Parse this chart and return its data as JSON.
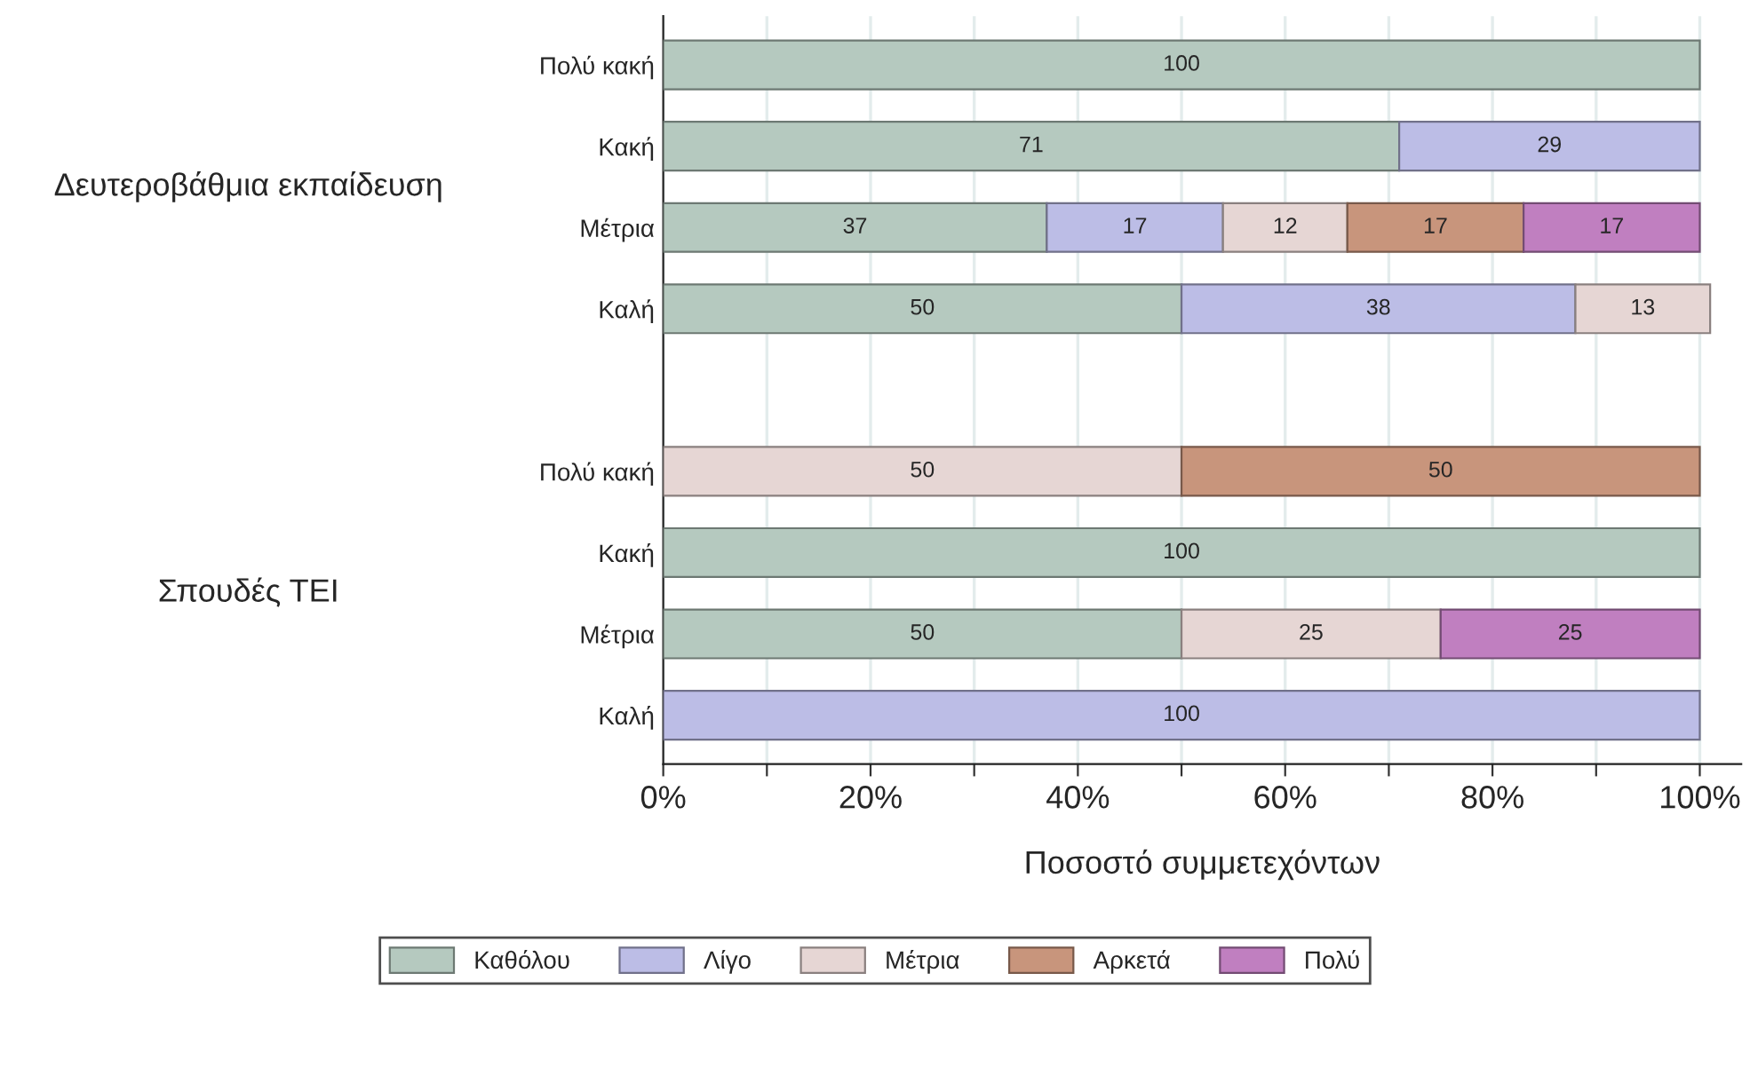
{
  "chart_data": {
    "type": "bar",
    "orientation": "horizontal",
    "stacked": true,
    "categories": [
      "Πολύ κακή",
      "Κακή",
      "Μέτρια",
      "Καλή",
      null,
      "Πολύ κακή",
      "Κακή",
      "Μέτρια",
      "Καλή"
    ],
    "annotations": [
      "Δευτεροβάθμια εκπαίδευση",
      "Σπουδές ΤΕΙ"
    ],
    "series": [
      {
        "name": "Καθόλου",
        "color": "#b5c9bf",
        "values": [
          100,
          71,
          37,
          50,
          null,
          null,
          100,
          50,
          null
        ]
      },
      {
        "name": "Λίγο",
        "color": "#bcbde6",
        "values": [
          null,
          29,
          17,
          38,
          null,
          null,
          null,
          null,
          100
        ]
      },
      {
        "name": "Μέτρια",
        "color": "#e6d6d4",
        "values": [
          null,
          null,
          12,
          13,
          null,
          50,
          null,
          25,
          null
        ]
      },
      {
        "name": "Αρκετά",
        "color": "#c8957c",
        "values": [
          null,
          null,
          17,
          null,
          null,
          50,
          null,
          null,
          null
        ]
      },
      {
        "name": "Πολύ",
        "color": "#c07fc0",
        "values": [
          null,
          null,
          17,
          null,
          null,
          null,
          null,
          25,
          null
        ]
      }
    ],
    "xlabel": "Ποσοστό συμμετεχόντων",
    "xlim": [
      0,
      104
    ],
    "xticks": [
      {
        "value": 0,
        "label": "0%"
      },
      {
        "value": 10,
        "label": null
      },
      {
        "value": 20,
        "label": "20%"
      },
      {
        "value": 30,
        "label": null
      },
      {
        "value": 40,
        "label": "40%"
      },
      {
        "value": 50,
        "label": null
      },
      {
        "value": 60,
        "label": "60%"
      },
      {
        "value": 70,
        "label": null
      },
      {
        "value": 80,
        "label": "80%"
      },
      {
        "value": 90,
        "label": null
      },
      {
        "value": 100,
        "label": "100%"
      }
    ],
    "grid": "x",
    "data_labels": true,
    "legend": "bottom"
  }
}
